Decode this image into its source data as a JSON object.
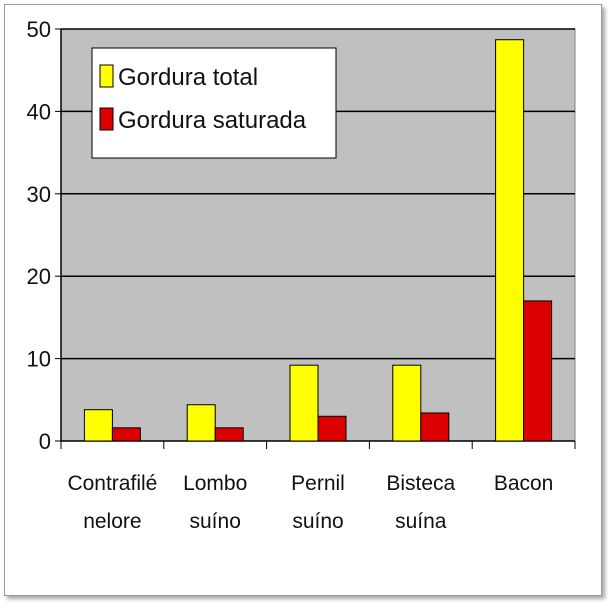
{
  "chart_data": {
    "type": "bar",
    "title": "",
    "xlabel": "",
    "ylabel": "",
    "categories": [
      [
        "Contrafilé",
        "nelore"
      ],
      [
        "Lombo",
        "suíno"
      ],
      [
        "Pernil",
        "suíno"
      ],
      [
        "Bisteca",
        "suína"
      ],
      [
        "Bacon"
      ]
    ],
    "series": [
      {
        "name": "Gordura total",
        "color": "#ffff00",
        "values": [
          3.8,
          4.4,
          9.2,
          9.2,
          48.7
        ]
      },
      {
        "name": "Gordura saturada",
        "color": "#dd0000",
        "values": [
          1.6,
          1.6,
          3.0,
          3.4,
          17.0
        ]
      }
    ],
    "ylim": [
      0,
      50
    ],
    "yticks": [
      0,
      10,
      20,
      30,
      40,
      50
    ],
    "grid": true,
    "legend_position": "top-left",
    "plot_background": "#c0c0c0"
  }
}
